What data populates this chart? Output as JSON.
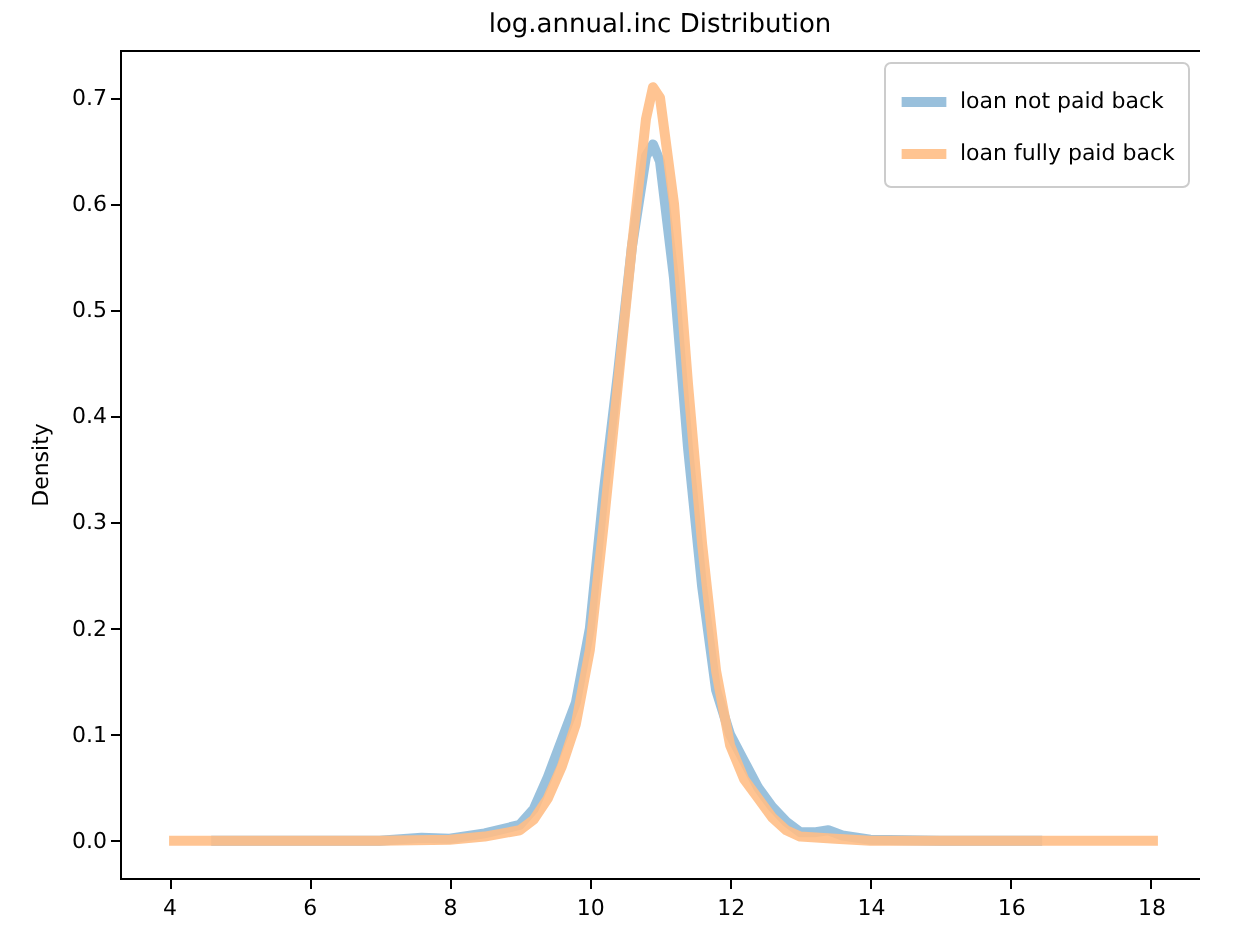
{
  "chart_data": {
    "type": "line",
    "title": "log.annual.inc Distribution",
    "ylabel": "Density",
    "xlim": [
      3.3,
      18.7
    ],
    "xticks": [
      4,
      6,
      8,
      10,
      12,
      14,
      16,
      18
    ],
    "ylim": [
      -0.035,
      0.745
    ],
    "yticks": [
      {
        "value": 0,
        "label": "0.0"
      },
      0.1,
      0.2,
      0.3,
      0.4,
      0.5,
      0.6,
      0.7
    ],
    "legend": "top right",
    "grid": false,
    "line_style": "solid",
    "marker": "none",
    "series": [
      {
        "name": "loan not paid back",
        "color": "#8ebad9",
        "x": [
          4.6,
          7,
          7.6,
          8,
          8.5,
          9.0,
          9.2,
          9.4,
          9.6,
          9.8,
          10.0,
          10.2,
          10.4,
          10.6,
          10.8,
          10.9,
          11.0,
          11.2,
          11.4,
          11.6,
          11.8,
          12.0,
          12.2,
          12.4,
          12.6,
          12.8,
          13.0,
          13.2,
          13.4,
          13.6,
          14,
          15,
          16.45
        ],
        "values": [
          0,
          0,
          0.003,
          0.002,
          0.007,
          0.015,
          0.03,
          0.06,
          0.095,
          0.13,
          0.2,
          0.33,
          0.44,
          0.56,
          0.645,
          0.656,
          0.64,
          0.53,
          0.37,
          0.24,
          0.142,
          0.1,
          0.075,
          0.05,
          0.032,
          0.018,
          0.008,
          0.008,
          0.01,
          0.005,
          0.001,
          0,
          0
        ]
      },
      {
        "name": "loan fully paid back",
        "color": "#ffbe86",
        "x": [
          4,
          7,
          8,
          8.5,
          9,
          9.2,
          9.4,
          9.6,
          9.8,
          10.0,
          10.2,
          10.4,
          10.6,
          10.8,
          10.9,
          11.0,
          11.2,
          11.4,
          11.6,
          11.8,
          12.0,
          12.2,
          12.4,
          12.6,
          12.8,
          13,
          13.5,
          14,
          18.1
        ],
        "values": [
          0,
          0,
          0.001,
          0.004,
          0.01,
          0.02,
          0.04,
          0.07,
          0.11,
          0.18,
          0.3,
          0.43,
          0.56,
          0.68,
          0.71,
          0.7,
          0.6,
          0.43,
          0.28,
          0.16,
          0.09,
          0.058,
          0.04,
          0.022,
          0.01,
          0.004,
          0.002,
          0,
          0
        ]
      }
    ]
  }
}
